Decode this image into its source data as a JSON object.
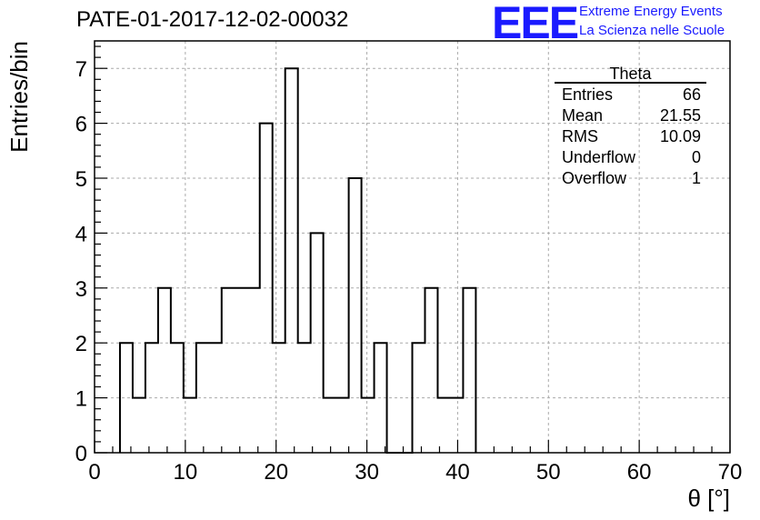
{
  "chart_data": {
    "type": "bar",
    "histogram": true,
    "title": "PATE-01-2017-12-02-00032",
    "xlabel": "θ [°]",
    "ylabel": "Entries/bin",
    "xlim": [
      0,
      70
    ],
    "ylim": [
      0,
      7.5
    ],
    "grid": true,
    "bin_width": 1.4,
    "bin_start": 2.8,
    "values": [
      2,
      1,
      2,
      3,
      2,
      1,
      2,
      2,
      3,
      3,
      3,
      6,
      2,
      7,
      2,
      4,
      1,
      1,
      5,
      1,
      2,
      0,
      0,
      2,
      3,
      1,
      1,
      3
    ],
    "xticks": [
      0,
      10,
      20,
      30,
      40,
      50,
      60,
      70
    ],
    "yticks": [
      0,
      1,
      2,
      3,
      4,
      5,
      6,
      7
    ],
    "stats": {
      "name": "Theta",
      "rows": [
        {
          "label": "Entries",
          "value": "66"
        },
        {
          "label": "Mean",
          "value": "21.55"
        },
        {
          "label": "RMS",
          "value": "10.09"
        },
        {
          "label": "Underflow",
          "value": "0"
        },
        {
          "label": "Overflow",
          "value": "1"
        }
      ]
    }
  },
  "logo": {
    "mark": "EEE",
    "line1": "Extreme Energy Events",
    "line2": "La Scienza nelle Scuole",
    "color": "#1a1aff"
  }
}
